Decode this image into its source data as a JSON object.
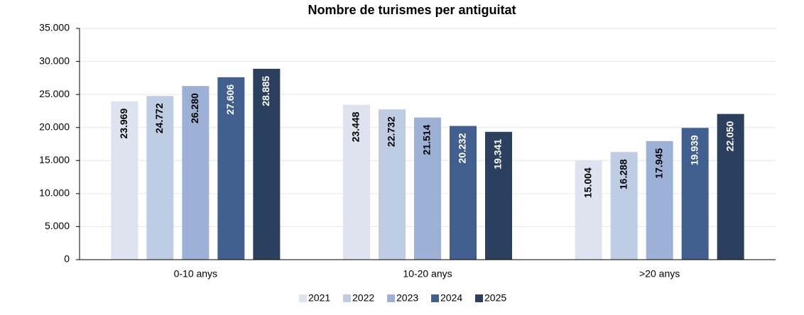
{
  "chart_data": {
    "type": "bar",
    "title": "Nombre de turismes per antiguitat",
    "categories": [
      "0-10 anys",
      "10-20 anys",
      ">20 anys"
    ],
    "series": [
      {
        "name": "2021",
        "color": "#dfe3f0",
        "values": [
          23969,
          23448,
          15004
        ],
        "value_labels": [
          "23.969",
          "23.448",
          "15.004"
        ]
      },
      {
        "name": "2022",
        "color": "#bfcde4",
        "values": [
          24772,
          22732,
          16288
        ],
        "value_labels": [
          "24.772",
          "22.732",
          "16.288"
        ]
      },
      {
        "name": "2023",
        "color": "#9cb1d5",
        "values": [
          26280,
          21514,
          17945
        ],
        "value_labels": [
          "26.280",
          "21.514",
          "17.945"
        ]
      },
      {
        "name": "2024",
        "color": "#41608f",
        "values": [
          27606,
          20232,
          19939
        ],
        "value_labels": [
          "27.606",
          "20.232",
          "19.939"
        ]
      },
      {
        "name": "2025",
        "color": "#2b3f5f",
        "values": [
          28885,
          19341,
          22050
        ],
        "value_labels": [
          "28.885",
          "19.341",
          "22.050"
        ]
      }
    ],
    "ylim": [
      0,
      35000
    ],
    "yticks": [
      0,
      {
        "value": 5000,
        "label": "5.000"
      },
      {
        "value": 10000,
        "label": "10.000"
      },
      {
        "value": 15000,
        "label": "15.000"
      },
      {
        "value": 20000,
        "label": "20.000"
      },
      {
        "value": 25000,
        "label": "25.000"
      },
      {
        "value": 30000,
        "label": "30.000"
      },
      {
        "value": 35000,
        "label": "35.000"
      }
    ],
    "grid": true,
    "legend": "bottom"
  }
}
